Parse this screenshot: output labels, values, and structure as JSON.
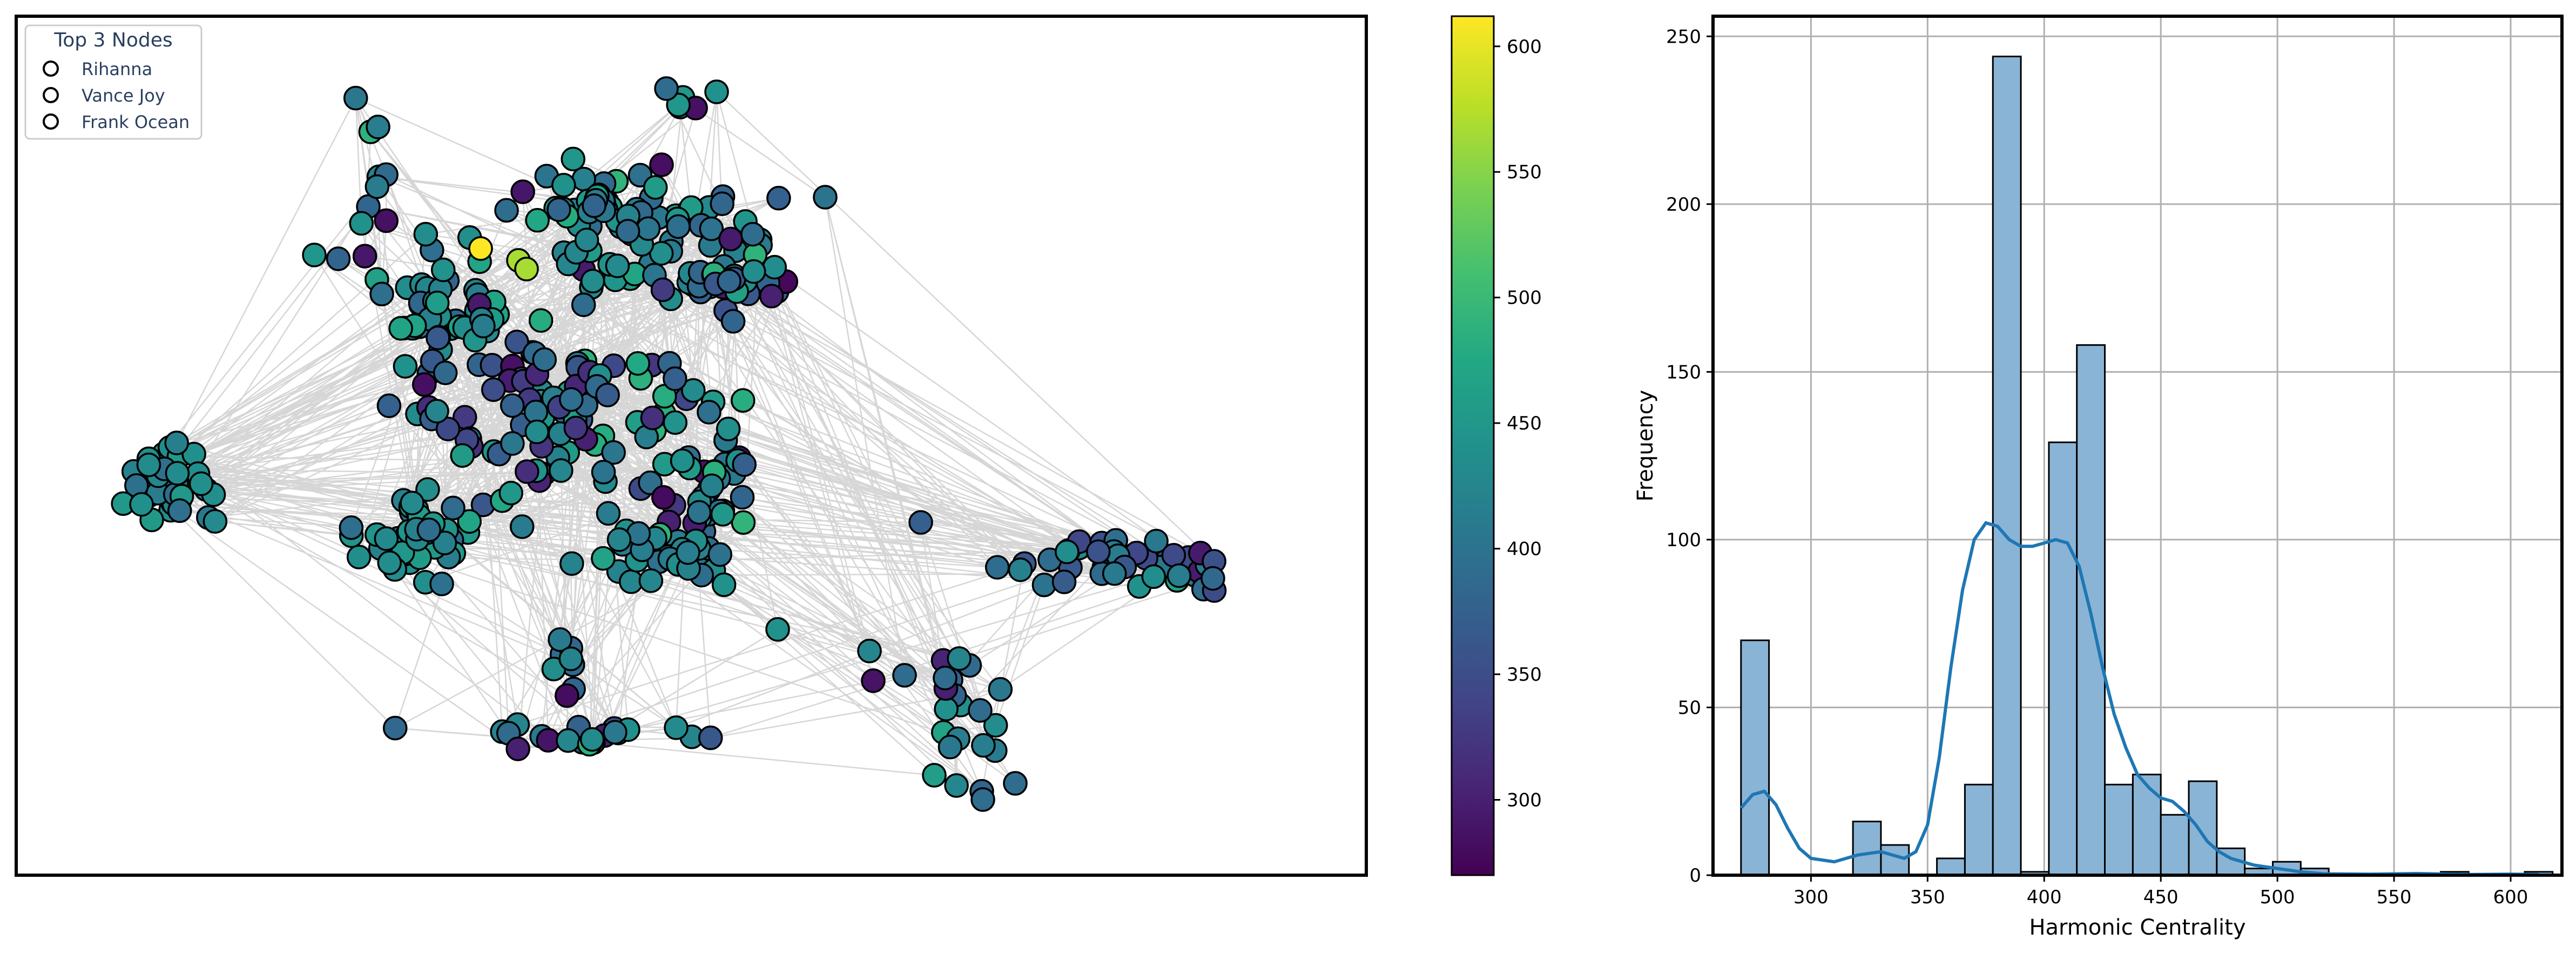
{
  "network_panel": {
    "legend": {
      "title": "Top 3 Nodes",
      "items": [
        "Rihanna",
        "Vance Joy",
        "Frank Ocean"
      ]
    }
  },
  "colorbar": {
    "colormap": "viridis",
    "range": [
      270,
      612
    ],
    "ticks": [
      300,
      350,
      400,
      450,
      500,
      550,
      600
    ]
  },
  "chart_data": [
    {
      "type": "network",
      "description_of_color": "node color = harmonic centrality",
      "top_nodes": [
        {
          "name": "Rihanna",
          "color": "#fde725"
        },
        {
          "name": "Vance Joy",
          "color": "#a8db34"
        },
        {
          "name": "Frank Ocean",
          "color": "#a8db34"
        }
      ],
      "edge_color": "#000000",
      "node_edge_color": "#000000"
    },
    {
      "type": "bar",
      "subtype": "histogram_with_kde",
      "xlabel": "Harmonic Centrality",
      "ylabel": "Frequency",
      "xlim": [
        258,
        622
      ],
      "ylim": [
        0,
        256
      ],
      "xticks": [
        300,
        350,
        400,
        450,
        500,
        550,
        600
      ],
      "yticks": [
        0,
        50,
        100,
        150,
        200,
        250
      ],
      "grid": true,
      "bar_color": "#8ab4d5",
      "kde_color": "#1f77b4",
      "bins": [
        {
          "x0": 270,
          "x1": 282,
          "value": 70
        },
        {
          "x0": 282,
          "x1": 294,
          "value": 0
        },
        {
          "x0": 294,
          "x1": 306,
          "value": 0
        },
        {
          "x0": 306,
          "x1": 318,
          "value": 0
        },
        {
          "x0": 318,
          "x1": 330,
          "value": 16
        },
        {
          "x0": 330,
          "x1": 342,
          "value": 9
        },
        {
          "x0": 342,
          "x1": 354,
          "value": 0
        },
        {
          "x0": 354,
          "x1": 366,
          "value": 5
        },
        {
          "x0": 366,
          "x1": 378,
          "value": 27
        },
        {
          "x0": 378,
          "x1": 390,
          "value": 244
        },
        {
          "x0": 390,
          "x1": 402,
          "value": 1
        },
        {
          "x0": 402,
          "x1": 414,
          "value": 129
        },
        {
          "x0": 414,
          "x1": 426,
          "value": 158
        },
        {
          "x0": 426,
          "x1": 438,
          "value": 27
        },
        {
          "x0": 438,
          "x1": 450,
          "value": 30
        },
        {
          "x0": 450,
          "x1": 462,
          "value": 18
        },
        {
          "x0": 462,
          "x1": 474,
          "value": 28
        },
        {
          "x0": 474,
          "x1": 486,
          "value": 8
        },
        {
          "x0": 486,
          "x1": 498,
          "value": 2
        },
        {
          "x0": 498,
          "x1": 510,
          "value": 4
        },
        {
          "x0": 510,
          "x1": 522,
          "value": 2
        },
        {
          "x0": 522,
          "x1": 534,
          "value": 0
        },
        {
          "x0": 534,
          "x1": 546,
          "value": 0
        },
        {
          "x0": 546,
          "x1": 558,
          "value": 0
        },
        {
          "x0": 558,
          "x1": 570,
          "value": 0
        },
        {
          "x0": 570,
          "x1": 582,
          "value": 1
        },
        {
          "x0": 582,
          "x1": 594,
          "value": 0
        },
        {
          "x0": 594,
          "x1": 606,
          "value": 0
        },
        {
          "x0": 606,
          "x1": 618,
          "value": 1
        }
      ],
      "kde": [
        [
          270,
          20
        ],
        [
          275,
          24
        ],
        [
          280,
          25
        ],
        [
          285,
          21
        ],
        [
          290,
          14
        ],
        [
          295,
          8
        ],
        [
          300,
          5
        ],
        [
          310,
          4
        ],
        [
          320,
          6
        ],
        [
          330,
          7
        ],
        [
          340,
          5
        ],
        [
          345,
          7
        ],
        [
          350,
          15
        ],
        [
          355,
          35
        ],
        [
          360,
          62
        ],
        [
          365,
          85
        ],
        [
          370,
          100
        ],
        [
          375,
          105
        ],
        [
          380,
          104
        ],
        [
          385,
          100
        ],
        [
          390,
          98
        ],
        [
          395,
          98
        ],
        [
          400,
          99
        ],
        [
          405,
          100
        ],
        [
          410,
          99
        ],
        [
          415,
          92
        ],
        [
          420,
          78
        ],
        [
          425,
          62
        ],
        [
          430,
          48
        ],
        [
          435,
          38
        ],
        [
          440,
          30
        ],
        [
          445,
          26
        ],
        [
          450,
          23
        ],
        [
          455,
          22
        ],
        [
          460,
          19
        ],
        [
          465,
          15
        ],
        [
          470,
          10
        ],
        [
          475,
          7
        ],
        [
          480,
          5
        ],
        [
          490,
          3
        ],
        [
          500,
          2
        ],
        [
          510,
          1
        ],
        [
          520,
          0.4
        ],
        [
          540,
          0.3
        ],
        [
          560,
          0.5
        ],
        [
          580,
          0.2
        ],
        [
          600,
          0.3
        ],
        [
          612,
          0.2
        ]
      ]
    }
  ]
}
